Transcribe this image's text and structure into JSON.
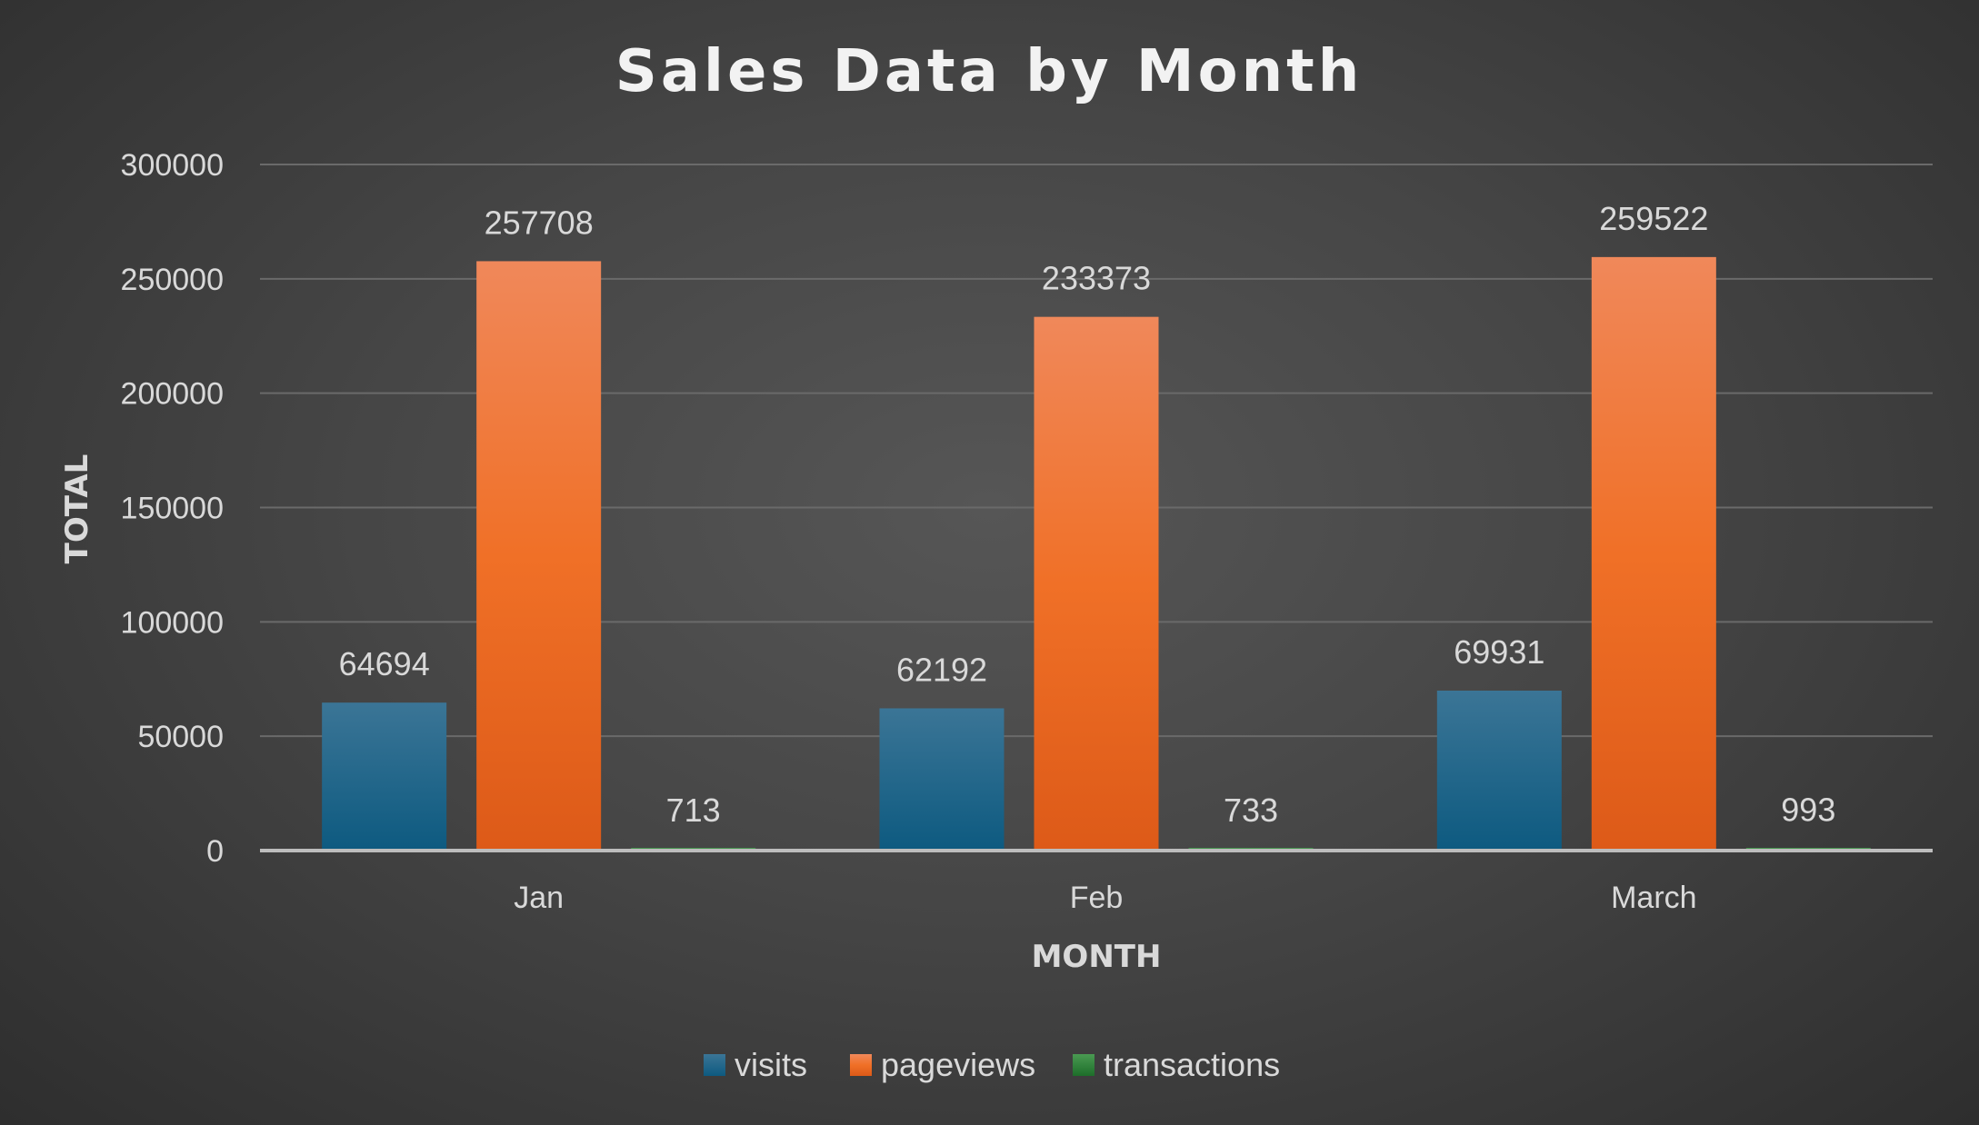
{
  "chart_data": {
    "type": "bar",
    "title": "Sales Data by Month",
    "xlabel": "MONTH",
    "ylabel": "TOTAL",
    "categories": [
      "Jan",
      "Feb",
      "March"
    ],
    "series": [
      {
        "name": "visits",
        "values": [
          64694,
          62192,
          69931
        ],
        "color": "#1f6b91"
      },
      {
        "name": "pageviews",
        "values": [
          257708,
          233373,
          259522
        ],
        "color": "#ee6a25"
      },
      {
        "name": "transactions",
        "values": [
          713,
          733,
          993
        ],
        "color": "#2e8a3a"
      }
    ],
    "yticks": [
      "0",
      "50000",
      "100000",
      "150000",
      "200000",
      "250000",
      "300000"
    ],
    "ylim": [
      0,
      300000
    ],
    "grid": true,
    "legend": "bottom"
  }
}
